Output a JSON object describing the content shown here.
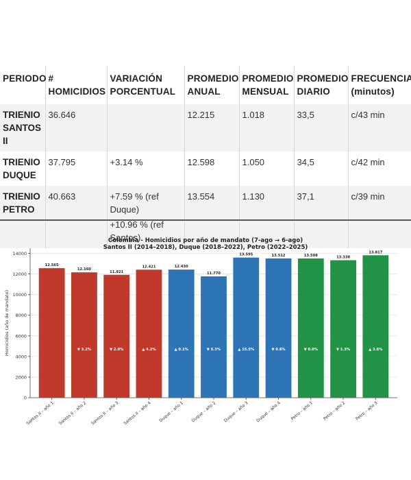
{
  "table": {
    "headers": [
      [
        "PERIODO"
      ],
      [
        "#",
        "HOMICIDIOS"
      ],
      [
        "VARIACIÓN",
        "PORCENTUAL"
      ],
      [
        "PROMEDIO",
        "ANUAL"
      ],
      [
        "PROMEDIO",
        "MENSUAL"
      ],
      [
        "PROMEDIO",
        "DIARIO"
      ],
      [
        "FRECUENCIA",
        "(minutos)"
      ]
    ],
    "rows": [
      {
        "periodo": [
          "TRIENIO",
          "SANTOS II"
        ],
        "homicidios": "36.646",
        "variacion": [],
        "anual": "12.215",
        "mensual": "1.018",
        "diario": "33,5",
        "frecuencia": "c/43 min"
      },
      {
        "periodo": [
          "TRIENIO",
          "DUQUE"
        ],
        "homicidios": "37.795",
        "variacion": [
          "+3.14 %"
        ],
        "anual": "12.598",
        "mensual": "1.050",
        "diario": "34,5",
        "frecuencia": "c/42 min"
      },
      {
        "periodo": [
          "TRIENIO",
          "PETRO"
        ],
        "homicidios": "40.663",
        "variacion": [
          "+7.59 % (ref",
          "Duque)",
          "+10.96 % (ref",
          "Santos)"
        ],
        "anual": "13.554",
        "mensual": "1.130",
        "diario": "37,1",
        "frecuencia": "c/39 min"
      }
    ]
  },
  "chart_data": {
    "type": "bar",
    "title": "Colombia - Homicidios por año de mandato (7-ago → 6-ago)",
    "subtitle": "Santos II (2014–2018), Duque (2018–2022), Petro (2022–2025)",
    "xlabel": "",
    "ylabel": "Homicidios (año de mandato)",
    "ylim": [
      0,
      14500
    ],
    "yticks": [
      0,
      2000,
      4000,
      6000,
      8000,
      10000,
      12000,
      14000
    ],
    "grid": true,
    "categories": [
      "Santos II – año 1",
      "Santos II – año 2",
      "Santos II – año 3",
      "Santos II – año 4",
      "Duque – año 1",
      "Duque – año 2",
      "Duque – año 3",
      "Duque – año 4",
      "Petro – año 1",
      "Petro – año 2",
      "Petro – año 3"
    ],
    "values": [
      12565,
      12160,
      11921,
      12421,
      12430,
      11770,
      13595,
      13512,
      13508,
      13338,
      13817
    ],
    "value_labels": [
      "12.565",
      "12.160",
      "11.921",
      "12.421",
      "12.430",
      "11.770",
      "13.595",
      "13.512",
      "13.508",
      "13.338",
      "13.817"
    ],
    "change_labels": [
      "",
      "▼ 3.2%",
      "▼ 2.0%",
      "▲ 4.2%",
      "▲ 0.1%",
      "▼ 5.3%",
      "▲ 15.5%",
      "▼ 0.6%",
      "▼ 0.0%",
      "▼ 1.3%",
      "▲ 3.6%"
    ],
    "colors": [
      "#c0392b",
      "#c0392b",
      "#c0392b",
      "#c0392b",
      "#2e75b6",
      "#2e75b6",
      "#2e75b6",
      "#2e75b6",
      "#229346",
      "#229346",
      "#229346"
    ]
  }
}
